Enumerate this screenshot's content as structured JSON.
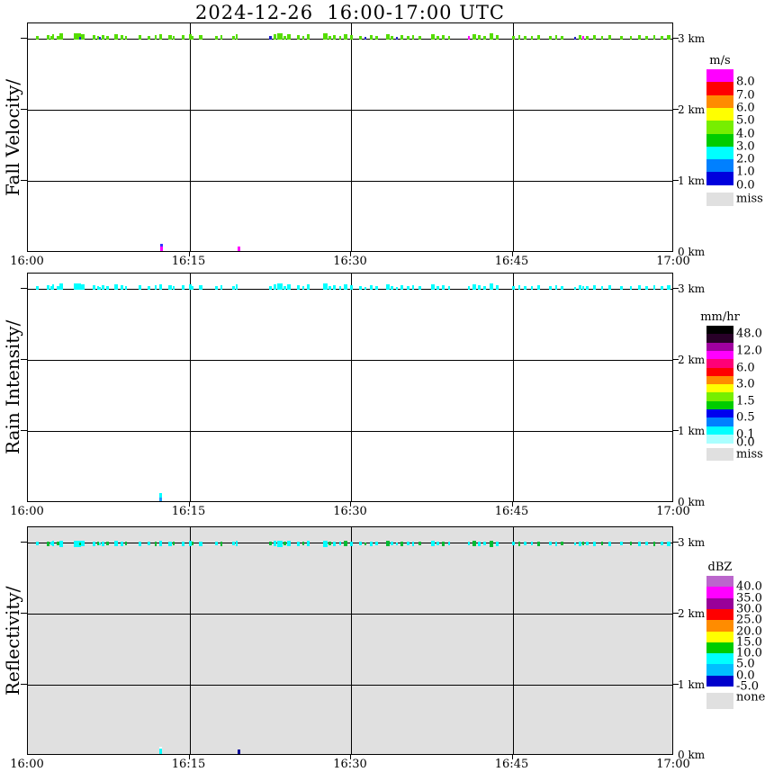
{
  "title": "2024-12-26  16:00-17:00 UTC",
  "x_axis": {
    "tick_labels": [
      "16:00",
      "16:15",
      "16:30",
      "16:45",
      "17:00"
    ]
  },
  "y_axis": {
    "tick_labels": [
      "3 km",
      "2 km",
      "1 km",
      "0 km"
    ]
  },
  "panels": [
    {
      "name": "fall-velocity",
      "label": "Fall Velocity/",
      "bg": "#ffffff",
      "colorbar": {
        "unit": "m/s",
        "colors": [
          "#ff00ff",
          "#ff0000",
          "#ff8c00",
          "#ffff00",
          "#77ee00",
          "#00cc00",
          "#00ffff",
          "#0080ff",
          "#0000dd"
        ],
        "labels": [
          [
            "8.0",
            1
          ],
          [
            "7.0",
            2
          ],
          [
            "6.0",
            3
          ],
          [
            "5.0",
            4
          ],
          [
            "4.0",
            5
          ],
          [
            "3.0",
            6
          ],
          [
            "2.0",
            7
          ],
          [
            "1.0",
            8
          ],
          [
            "0.0",
            9
          ]
        ],
        "miss_label": "miss"
      }
    },
    {
      "name": "rain-intensity",
      "label": "Rain Intensity/",
      "bg": "#ffffff",
      "colorbar": {
        "unit": "mm/hr",
        "colors": [
          "#000000",
          "#280028",
          "#a000a0",
          "#ff00ff",
          "#ff0077",
          "#ff0000",
          "#ff8c00",
          "#ffff00",
          "#77ee00",
          "#00cc00",
          "#0000ee",
          "#0080ff",
          "#00ffff",
          "#aaffff"
        ],
        "labels": [
          [
            "48.0",
            1
          ],
          [
            "12.0",
            3
          ],
          [
            "6.0",
            5
          ],
          [
            "3.0",
            7
          ],
          [
            "1.5",
            9
          ],
          [
            "0.5",
            11
          ],
          [
            "0.1",
            13
          ],
          [
            "0.0",
            14
          ]
        ],
        "miss_label": "miss"
      }
    },
    {
      "name": "reflectivity",
      "label": "Reflectivity/",
      "bg": "#e0e0e0",
      "colorbar": {
        "unit": "dBZ",
        "colors": [
          "#bb66cc",
          "#ff00ff",
          "#990099",
          "#ff0000",
          "#ff8c00",
          "#ffff00",
          "#00cc00",
          "#00ffff",
          "#00bfff",
          "#0000cc"
        ],
        "labels": [
          [
            "40.0",
            1
          ],
          [
            "35.0",
            2
          ],
          [
            "30.0",
            3
          ],
          [
            "25.0",
            4
          ],
          [
            "20.0",
            5
          ],
          [
            "15.0",
            6
          ],
          [
            "10.0",
            7
          ],
          [
            "5.0",
            8
          ],
          [
            "0.0",
            9
          ],
          [
            "-5.0",
            10
          ]
        ],
        "miss_label": "none"
      }
    }
  ],
  "palette": {
    "g": "#55dd00",
    "G": "#00bb33",
    "c": "#00ffff",
    "b": "#2222cc",
    "m": "#ff00ff",
    "navy": "#000099",
    "dodger": "#2299ff",
    "blue2": "#3333ff",
    "white": "#ffffff"
  },
  "chart_data": {
    "type": "heatmap",
    "title": "2024-12-26  16:00-17:00 UTC",
    "x_range_utc": [
      "16:00",
      "17:00"
    ],
    "x_gridlines_utc": [
      "16:15",
      "16:30",
      "16:45"
    ],
    "y_range_km": [
      0,
      3.25
    ],
    "y_gridlines_km": [
      1,
      2,
      3
    ],
    "legend_position": "right",
    "panel_units": [
      "m/s",
      "mm/hr",
      "dBZ"
    ],
    "echo_band_km": 3.05,
    "band_specks_note": "each speck: [x_fraction_of_hour, width_px, height_px, fall_velocity_color, reflectivity_color]; rain_intensity color is always cyan (0.1 mm/hr); x_fraction 0=16:00, 1=17:00",
    "band_specks": [
      [
        0.014,
        3,
        4,
        "g",
        "c"
      ],
      [
        0.032,
        3,
        5,
        "g",
        "G"
      ],
      [
        0.036,
        2,
        4,
        "g",
        "c"
      ],
      [
        0.039,
        2,
        6,
        "g",
        "c"
      ],
      [
        0.046,
        3,
        4,
        "g",
        "G"
      ],
      [
        0.052,
        4,
        7,
        "g",
        "c"
      ],
      [
        0.077,
        8,
        7,
        "g",
        "c"
      ],
      [
        0.081,
        3,
        3,
        "b",
        "G"
      ],
      [
        0.085,
        4,
        6,
        "g",
        "c"
      ],
      [
        0.103,
        3,
        5,
        "g",
        "c"
      ],
      [
        0.109,
        2,
        4,
        "g",
        "G"
      ],
      [
        0.111,
        2,
        3,
        "b",
        "c"
      ],
      [
        0.116,
        3,
        5,
        "g",
        "c"
      ],
      [
        0.123,
        3,
        4,
        "g",
        "G"
      ],
      [
        0.136,
        4,
        6,
        "g",
        "c"
      ],
      [
        0.146,
        3,
        5,
        "g",
        "c"
      ],
      [
        0.152,
        2,
        4,
        "g",
        "G"
      ],
      [
        0.174,
        3,
        5,
        "g",
        "c"
      ],
      [
        0.188,
        3,
        4,
        "g",
        "c"
      ],
      [
        0.198,
        2,
        5,
        "g",
        "G"
      ],
      [
        0.206,
        3,
        6,
        "g",
        "c"
      ],
      [
        0.22,
        4,
        5,
        "g",
        "c"
      ],
      [
        0.226,
        2,
        4,
        "g",
        "G"
      ],
      [
        0.24,
        3,
        5,
        "g",
        "c"
      ],
      [
        0.251,
        3,
        6,
        "g",
        "c"
      ],
      [
        0.255,
        2,
        4,
        "g",
        "G"
      ],
      [
        0.267,
        4,
        5,
        "g",
        "c"
      ],
      [
        0.292,
        3,
        4,
        "g",
        "c"
      ],
      [
        0.299,
        2,
        5,
        "g",
        "G"
      ],
      [
        0.318,
        3,
        4,
        "g",
        "c"
      ],
      [
        0.323,
        2,
        6,
        "g",
        "c"
      ],
      [
        0.376,
        3,
        4,
        "b",
        "G"
      ],
      [
        0.383,
        3,
        6,
        "g",
        "c"
      ],
      [
        0.39,
        6,
        7,
        "g",
        "c"
      ],
      [
        0.397,
        3,
        4,
        "g",
        "G"
      ],
      [
        0.404,
        4,
        6,
        "g",
        "c"
      ],
      [
        0.419,
        3,
        5,
        "g",
        "c"
      ],
      [
        0.426,
        2,
        4,
        "g",
        "G"
      ],
      [
        0.434,
        3,
        6,
        "g",
        "c"
      ],
      [
        0.46,
        5,
        7,
        "g",
        "c"
      ],
      [
        0.467,
        3,
        4,
        "g",
        "G"
      ],
      [
        0.474,
        3,
        5,
        "g",
        "c"
      ],
      [
        0.483,
        2,
        4,
        "g",
        "c"
      ],
      [
        0.492,
        4,
        6,
        "g",
        "G"
      ],
      [
        0.501,
        3,
        5,
        "g",
        "c"
      ],
      [
        0.515,
        3,
        4,
        "g",
        "c"
      ],
      [
        0.522,
        2,
        3,
        "b",
        "G"
      ],
      [
        0.532,
        3,
        5,
        "g",
        "c"
      ],
      [
        0.54,
        3,
        4,
        "g",
        "c"
      ],
      [
        0.557,
        4,
        6,
        "g",
        "G"
      ],
      [
        0.564,
        3,
        4,
        "g",
        "c"
      ],
      [
        0.571,
        2,
        3,
        "b",
        "c"
      ],
      [
        0.578,
        3,
        5,
        "g",
        "G"
      ],
      [
        0.588,
        3,
        4,
        "g",
        "c"
      ],
      [
        0.596,
        2,
        5,
        "g",
        "c"
      ],
      [
        0.606,
        3,
        4,
        "g",
        "G"
      ],
      [
        0.627,
        4,
        6,
        "g",
        "c"
      ],
      [
        0.635,
        3,
        4,
        "g",
        "c"
      ],
      [
        0.643,
        3,
        5,
        "g",
        "G"
      ],
      [
        0.652,
        2,
        4,
        "g",
        "c"
      ],
      [
        0.682,
        2,
        4,
        "m",
        "c"
      ],
      [
        0.691,
        4,
        6,
        "g",
        "G"
      ],
      [
        0.699,
        3,
        5,
        "g",
        "c"
      ],
      [
        0.707,
        3,
        4,
        "g",
        "c"
      ],
      [
        0.717,
        4,
        7,
        "g",
        "G"
      ],
      [
        0.727,
        3,
        5,
        "g",
        "c"
      ],
      [
        0.752,
        3,
        4,
        "g",
        "c"
      ],
      [
        0.76,
        2,
        5,
        "g",
        "G"
      ],
      [
        0.769,
        3,
        4,
        "g",
        "c"
      ],
      [
        0.78,
        2,
        4,
        "g",
        "c"
      ],
      [
        0.79,
        3,
        5,
        "g",
        "G"
      ],
      [
        0.808,
        3,
        4,
        "g",
        "c"
      ],
      [
        0.817,
        2,
        5,
        "g",
        "c"
      ],
      [
        0.827,
        3,
        4,
        "g",
        "G"
      ],
      [
        0.847,
        2,
        3,
        "b",
        "c"
      ],
      [
        0.854,
        3,
        5,
        "g",
        "c"
      ],
      [
        0.859,
        2,
        4,
        "m",
        "G"
      ],
      [
        0.866,
        3,
        4,
        "g",
        "c"
      ],
      [
        0.877,
        3,
        5,
        "g",
        "c"
      ],
      [
        0.889,
        2,
        4,
        "g",
        "G"
      ],
      [
        0.9,
        3,
        5,
        "g",
        "c"
      ],
      [
        0.919,
        3,
        4,
        "g",
        "c"
      ],
      [
        0.933,
        2,
        4,
        "g",
        "G"
      ],
      [
        0.947,
        3,
        5,
        "g",
        "c"
      ],
      [
        0.958,
        3,
        4,
        "g",
        "c"
      ],
      [
        0.969,
        2,
        5,
        "g",
        "G"
      ],
      [
        0.981,
        3,
        4,
        "g",
        "c"
      ],
      [
        0.992,
        4,
        5,
        "g",
        "c"
      ]
    ],
    "surface_specks_note": "near-ground echoes just above 0 km; stack = [color,height_px] top to bottom",
    "surface_specks": {
      "0": [
        {
          "f": 0.2075,
          "w": 3,
          "stack": [
            [
              "blue2",
              3
            ],
            [
              "m",
              5
            ]
          ]
        },
        {
          "f": 0.327,
          "w": 3,
          "stack": [
            [
              "m",
              5
            ]
          ]
        }
      ],
      "1": [
        {
          "f": 0.206,
          "w": 3,
          "stack": [
            [
              "c",
              5
            ],
            [
              "dodger",
              4
            ]
          ]
        }
      ],
      "2": [
        {
          "f": 0.206,
          "w": 3,
          "stack": [
            [
              "white",
              2
            ],
            [
              "c",
              6
            ]
          ]
        },
        {
          "f": 0.327,
          "w": 3,
          "stack": [
            [
              "navy",
              5
            ]
          ]
        }
      ]
    }
  }
}
